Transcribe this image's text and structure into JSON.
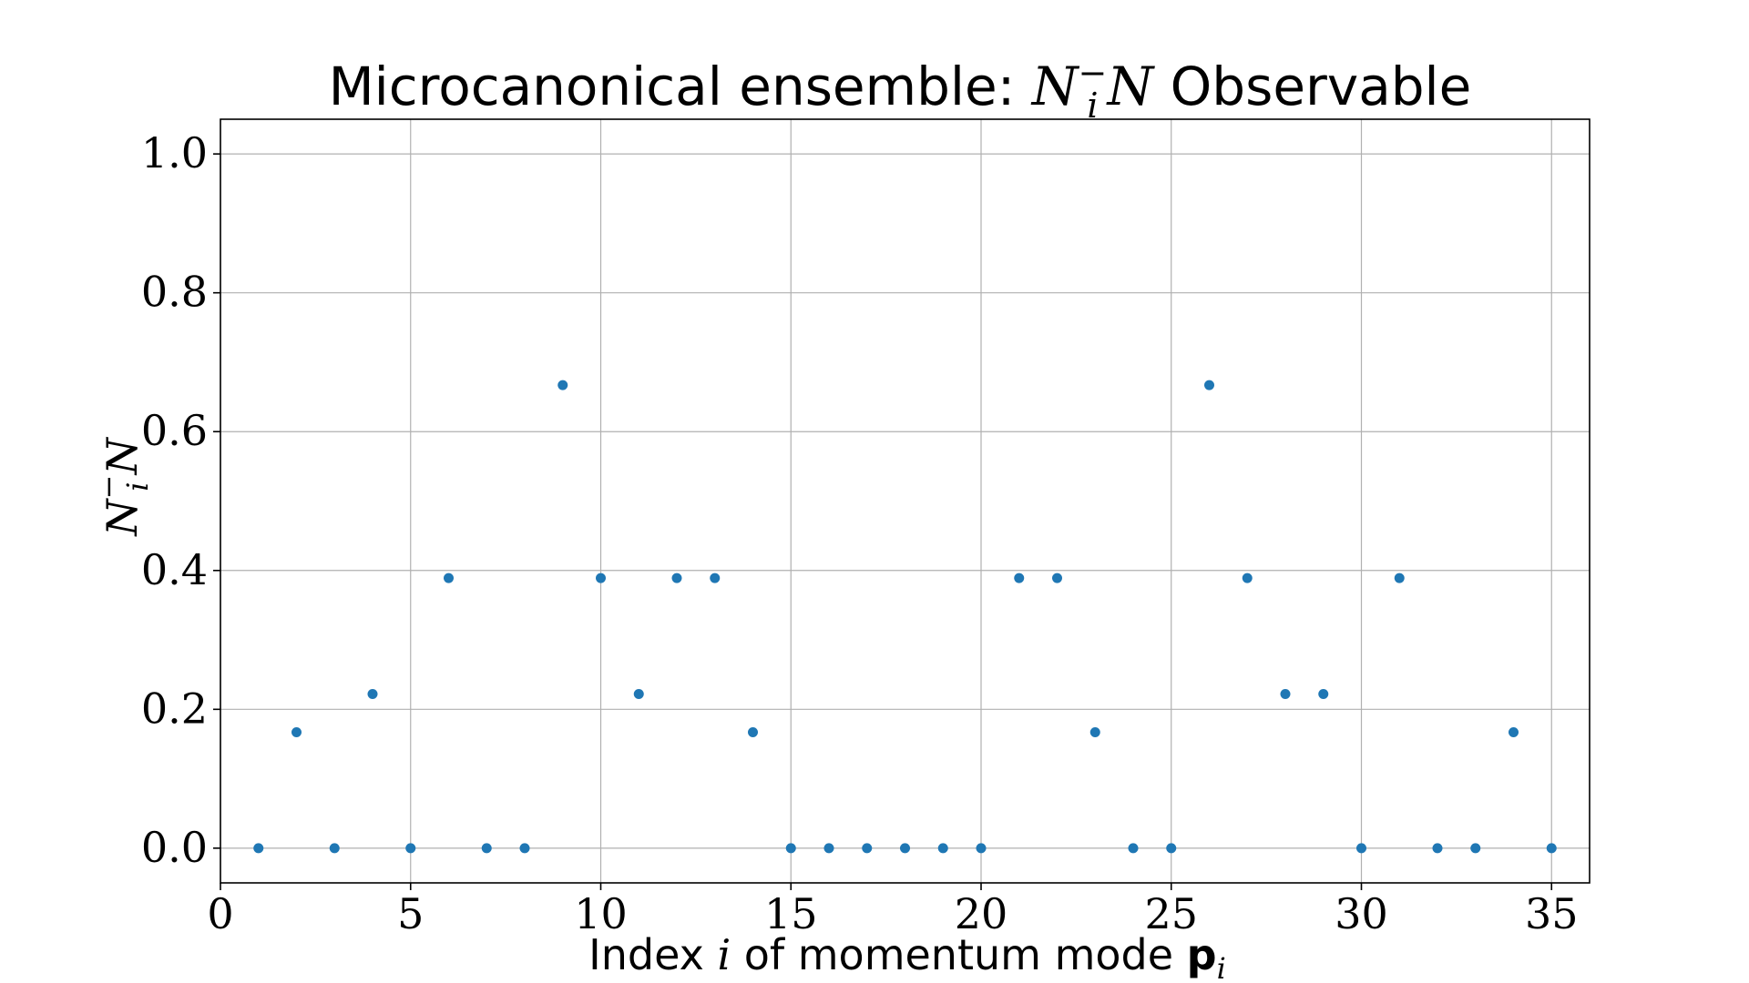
{
  "chart_data": {
    "type": "scatter",
    "title": {
      "prefix": "Microcanonical ensemble: ",
      "math_base": "N",
      "math_sub": "i",
      "math_sup": "−",
      "math_tail": "N",
      "suffix": " Observable"
    },
    "xlabel": {
      "prefix": "Index ",
      "math_var": "i",
      "middle": " of momentum mode ",
      "bold_var": "p",
      "bold_sub": "i"
    },
    "ylabel": {
      "base": "N",
      "sub": "i",
      "sup": "−",
      "tail": "N"
    },
    "xlim": [
      0,
      36
    ],
    "ylim": [
      -0.05,
      1.05
    ],
    "xticks": [
      0,
      5,
      10,
      15,
      20,
      25,
      30,
      35
    ],
    "xtick_labels": [
      "0",
      "5",
      "10",
      "15",
      "20",
      "25",
      "30",
      "35"
    ],
    "yticks": [
      0.0,
      0.2,
      0.4,
      0.6,
      0.8,
      1.0
    ],
    "ytick_labels": [
      "0.0",
      "0.2",
      "0.4",
      "0.6",
      "0.8",
      "1.0"
    ],
    "grid": true,
    "marker_color": "#1f77b4",
    "x": [
      1,
      2,
      3,
      4,
      5,
      6,
      7,
      8,
      9,
      10,
      11,
      12,
      13,
      14,
      15,
      16,
      17,
      18,
      19,
      20,
      21,
      22,
      23,
      24,
      25,
      26,
      27,
      28,
      29,
      30,
      31,
      32,
      33,
      34,
      35
    ],
    "y": [
      0.0,
      0.167,
      0.0,
      0.222,
      0.0,
      0.389,
      0.0,
      0.0,
      0.667,
      0.389,
      0.222,
      0.389,
      0.389,
      0.167,
      0.0,
      0.0,
      0.0,
      0.0,
      0.0,
      0.0,
      0.389,
      0.389,
      0.167,
      0.0,
      0.0,
      0.667,
      0.389,
      0.222,
      0.222,
      0.0,
      0.389,
      0.0,
      0.0,
      0.167,
      0.0
    ]
  }
}
